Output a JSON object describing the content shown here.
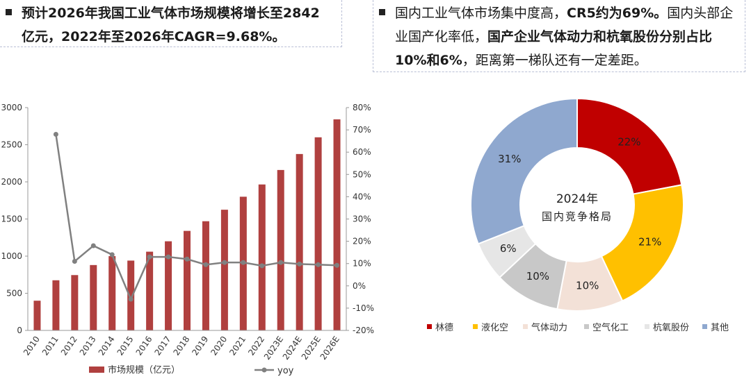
{
  "callout_left": {
    "line1": "预计2026年我国工业气体市场规模将增长至2842",
    "line2": "亿元，2022年至2026年CAGR=9.68%。"
  },
  "callout_right": {
    "line1_normal": "国内工业气体市场集中度高，",
    "line1_bold": "CR5约为69%。",
    "line1_tail": "国内头部企",
    "line2_normal": "业国产化率低，",
    "line2_bold": "国产企业气体动力和杭氧股份分别占比",
    "line3_bold": "10%和6%",
    "line3_normal": "，距离第一梯队还有一定差距。"
  },
  "chart_data": [
    {
      "type": "bar",
      "categories": [
        "2010",
        "2011",
        "2012",
        "2013",
        "2014",
        "2015",
        "2016",
        "2017",
        "2018",
        "2019",
        "2020",
        "2021",
        "2022",
        "2023E",
        "2024E",
        "2025E",
        "2026E"
      ],
      "series": [
        {
          "name": "市场规模（亿元）",
          "axis": "left",
          "type": "bar",
          "color": "#b0403f",
          "values": [
            400,
            675,
            745,
            880,
            1000,
            940,
            1060,
            1200,
            1340,
            1470,
            1625,
            1800,
            1965,
            2160,
            2375,
            2600,
            2842
          ]
        },
        {
          "name": "yoy",
          "axis": "right",
          "type": "line",
          "color": "#808080",
          "values": [
            null,
            68,
            11,
            18,
            14,
            -6,
            13,
            13,
            12,
            9.5,
            10.5,
            10.5,
            9,
            10.5,
            9.8,
            9.5,
            9.2
          ]
        }
      ],
      "left_axis": {
        "ylim": [
          0,
          3000
        ],
        "ticks": [
          "0",
          "500",
          "1000",
          "1500",
          "2000",
          "2500",
          "3000"
        ]
      },
      "right_axis": {
        "ylim": [
          -20,
          80
        ],
        "ticks": [
          "-20%",
          "-10%",
          "0%",
          "10%",
          "20%",
          "30%",
          "40%",
          "50%",
          "60%",
          "70%",
          "80%"
        ]
      },
      "legend_bar": "市场规模（亿元）",
      "legend_line": "yoy"
    },
    {
      "type": "pie",
      "center_label_1": "2024年",
      "center_label_2": "国内竞争格局",
      "slices": [
        {
          "label": "林德",
          "value": 22,
          "text": "22%",
          "color": "#c00000"
        },
        {
          "label": "液化空",
          "value": 21,
          "text": "21%",
          "color": "#ffc000"
        },
        {
          "label": "气体动力",
          "value": 10,
          "text": "10%",
          "color": "#f3e1d7"
        },
        {
          "label": "空气化工",
          "value": 10,
          "text": "10%",
          "color": "#c8c8c8"
        },
        {
          "label": "杭氧股份",
          "value": 6,
          "text": "6%",
          "color": "#e6e6e6"
        },
        {
          "label": "其他",
          "value": 31,
          "text": "31%",
          "color": "#8fa8cf"
        }
      ]
    }
  ]
}
